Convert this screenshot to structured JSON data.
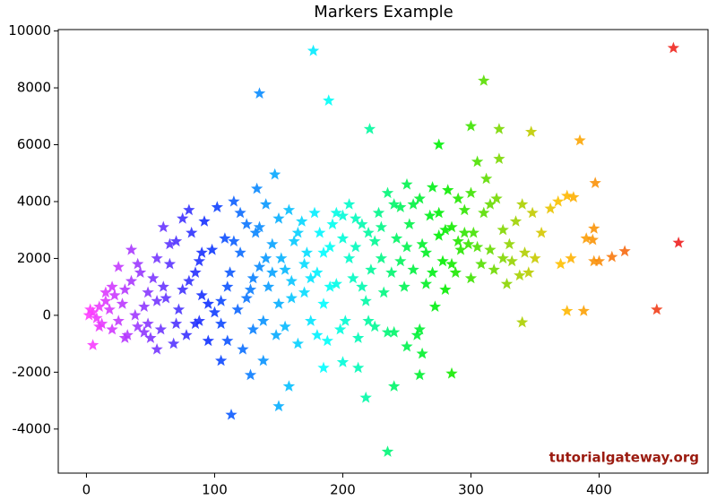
{
  "chart_data": {
    "type": "scatter",
    "title": "Markers Example",
    "watermark": "tutorialgateway.org",
    "marker": "star",
    "color_by": "x",
    "colormap": [
      "#ff3dff",
      "#1030ff",
      "#00ffff",
      "#00ee00",
      "#ffc000",
      "#ee2020"
    ],
    "xlim": [
      -22,
      485
    ],
    "ylim": [
      -5550,
      10050
    ],
    "xticks": [
      0,
      100,
      200,
      300,
      400
    ],
    "yticks": [
      -4000,
      -2000,
      0,
      2000,
      4000,
      6000,
      8000,
      10000
    ],
    "x": [
      177,
      135,
      189,
      221,
      310,
      458,
      462,
      445,
      235,
      113,
      150,
      158,
      218,
      240,
      260,
      285,
      275,
      300,
      322,
      347,
      385,
      397,
      420,
      410,
      396,
      388,
      375,
      340,
      147,
      133,
      5,
      55,
      105,
      128,
      138,
      185,
      200,
      212,
      250,
      262,
      390,
      396,
      395,
      380,
      375,
      362,
      368,
      355,
      370,
      378,
      400,
      2,
      5,
      8,
      10,
      12,
      15,
      18,
      20,
      22,
      25,
      28,
      30,
      32,
      35,
      38,
      40,
      42,
      45,
      48,
      50,
      15,
      25,
      35,
      30,
      45,
      20,
      10,
      3,
      40,
      48,
      52,
      55,
      58,
      60,
      62,
      65,
      68,
      70,
      72,
      75,
      78,
      80,
      82,
      85,
      88,
      90,
      92,
      95,
      98,
      100,
      60,
      70,
      80,
      90,
      65,
      85,
      95,
      75,
      55,
      88,
      102,
      105,
      108,
      110,
      112,
      115,
      118,
      120,
      122,
      125,
      128,
      130,
      132,
      135,
      138,
      140,
      142,
      145,
      148,
      150,
      110,
      120,
      130,
      140,
      105,
      115,
      125,
      135,
      145,
      150,
      152,
      155,
      158,
      160,
      162,
      165,
      168,
      170,
      172,
      175,
      178,
      180,
      182,
      185,
      188,
      190,
      192,
      195,
      198,
      200,
      160,
      170,
      180,
      190,
      200,
      165,
      175,
      185,
      195,
      155,
      202,
      205,
      208,
      210,
      212,
      215,
      218,
      220,
      222,
      225,
      228,
      230,
      232,
      235,
      238,
      240,
      242,
      245,
      248,
      250,
      205,
      215,
      225,
      235,
      245,
      210,
      230,
      240,
      250,
      220,
      252,
      255,
      258,
      260,
      262,
      265,
      268,
      270,
      272,
      275,
      278,
      280,
      282,
      285,
      288,
      290,
      292,
      295,
      298,
      300,
      255,
      265,
      275,
      285,
      295,
      260,
      270,
      280,
      290,
      300,
      302,
      305,
      308,
      310,
      312,
      315,
      318,
      320,
      322,
      325,
      328,
      330,
      332,
      335,
      338,
      340,
      342,
      345,
      348,
      350,
      305,
      315,
      325
    ],
    "values": [
      9300,
      7800,
      7550,
      6550,
      8250,
      9400,
      2550,
      200,
      -4800,
      -3500,
      -3200,
      -2500,
      -2900,
      -2500,
      -2100,
      -2050,
      6000,
      6650,
      6550,
      6450,
      6150,
      4650,
      2250,
      2050,
      1900,
      150,
      150,
      -250,
      4950,
      4450,
      -1050,
      -1200,
      -1600,
      -2100,
      -1600,
      -1850,
      -1650,
      -1850,
      -1100,
      -1350,
      2700,
      3050,
      2650,
      4150,
      4200,
      3750,
      4000,
      2900,
      1800,
      2000,
      1900,
      0,
      100,
      -100,
      300,
      -300,
      500,
      200,
      -500,
      700,
      -200,
      400,
      900,
      -700,
      1200,
      0,
      -400,
      1500,
      300,
      800,
      -800,
      800,
      1700,
      2300,
      -800,
      -600,
      1000,
      -400,
      200,
      1800,
      -300,
      1300,
      2000,
      -500,
      3100,
      600,
      1800,
      -1000,
      2600,
      200,
      3400,
      -700,
      1200,
      2900,
      -300,
      1900,
      700,
      3300,
      -900,
      2300,
      100,
      1000,
      -300,
      3700,
      2200,
      2500,
      1500,
      400,
      900,
      500,
      -200,
      3800,
      500,
      2700,
      -900,
      1500,
      4000,
      200,
      2200,
      -1200,
      3200,
      900,
      -500,
      2900,
      1700,
      -200,
      3900,
      1000,
      2500,
      -700,
      3400,
      1000,
      3600,
      1300,
      2000,
      -300,
      2600,
      600,
      3100,
      1500,
      400,
      2000,
      -400,
      3700,
      1200,
      2600,
      -1000,
      3300,
      800,
      2200,
      -200,
      3600,
      1500,
      2900,
      400,
      -900,
      2400,
      3200,
      1100,
      -500,
      2700,
      600,
      1800,
      -700,
      1000,
      3500,
      2900,
      1300,
      2200,
      3600,
      1600,
      -200,
      3900,
      1300,
      2400,
      -800,
      3200,
      500,
      2900,
      1600,
      -400,
      3600,
      2000,
      800,
      4300,
      1500,
      -600,
      2700,
      3800,
      1000,
      4600,
      2000,
      1000,
      2600,
      -600,
      1900,
      3400,
      3100,
      3900,
      2400,
      -200,
      3200,
      1600,
      -700,
      4100,
      2500,
      1100,
      3500,
      4500,
      300,
      2800,
      1900,
      900,
      4400,
      3100,
      1500,
      4100,
      2300,
      3700,
      2500,
      1300,
      3900,
      2200,
      3600,
      1800,
      2900,
      -500,
      1500,
      3000,
      2600,
      4300,
      2900,
      5400,
      1800,
      3600,
      4800,
      2300,
      1600,
      4100,
      5500,
      3000,
      1100,
      2500,
      1900,
      3300,
      1400,
      3900,
      2200,
      1500,
      3600,
      2000,
      2400,
      3900,
      2000
    ]
  }
}
